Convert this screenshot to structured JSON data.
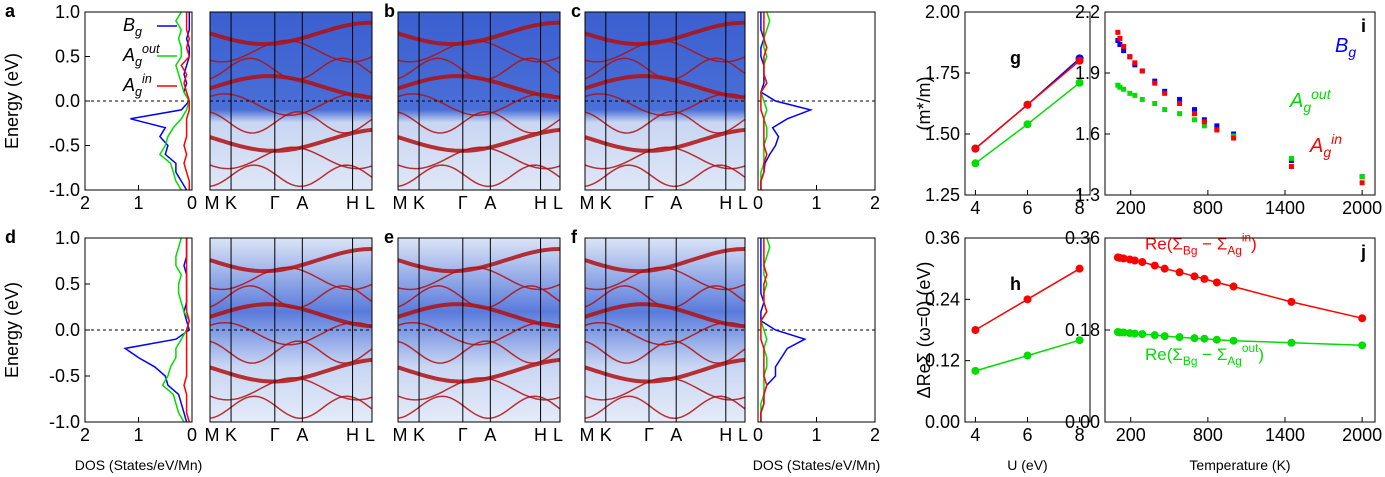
{
  "chart_data": [
    {
      "type": "dos",
      "label": "a",
      "ylabel": "Energy (eV)",
      "xlim": [
        2,
        0
      ],
      "xticks": [
        2,
        1,
        0
      ],
      "ylim": [
        -1,
        1
      ],
      "yticks": [
        {
          "value": -1,
          "label": "-1.0"
        },
        -0.5,
        {
          "value": 0,
          "label": "0.0"
        },
        0.5,
        {
          "value": 1,
          "label": "1.0"
        }
      ],
      "energy": [
        -1.0,
        -0.9,
        -0.8,
        -0.7,
        -0.6,
        -0.5,
        -0.4,
        -0.3,
        -0.2,
        -0.1,
        0.0,
        0.1,
        0.2,
        0.3,
        0.4,
        0.5,
        0.6,
        0.7,
        0.8,
        0.9,
        1.0
      ],
      "legend": true,
      "series": [
        {
          "name": [
            {
              "text": "B"
            },
            {
              "text": "g",
              "shift": "sub"
            }
          ],
          "color": "#0000ff",
          "values": [
            0.1,
            0.2,
            0.3,
            0.3,
            0.5,
            0.45,
            0.6,
            0.5,
            1.15,
            0.2,
            0.05,
            0.15,
            0.1,
            0.15,
            0.1,
            0.05,
            0.05,
            0.1,
            0.05,
            0.05,
            0.05
          ]
        },
        {
          "name": [
            {
              "text": "A"
            },
            {
              "text": "g",
              "shift": "sub"
            },
            {
              "text": "out",
              "shift": "sup"
            }
          ],
          "color": "#00dd00",
          "values": [
            0.2,
            0.3,
            0.35,
            0.4,
            0.6,
            0.5,
            0.45,
            0.35,
            0.2,
            0.1,
            0.05,
            0.15,
            0.2,
            0.25,
            0.3,
            0.2,
            0.2,
            0.25,
            0.2,
            0.3,
            0.2
          ]
        },
        {
          "name": [
            {
              "text": "A"
            },
            {
              "text": "g",
              "shift": "sub"
            },
            {
              "text": "in",
              "shift": "sup"
            }
          ],
          "color": "#ff0000",
          "values": [
            0.05,
            0.05,
            0.1,
            0.15,
            0.1,
            0.15,
            0.1,
            0.1,
            0.1,
            0.05,
            0.05,
            0.1,
            0.15,
            0.1,
            0.2,
            0.05,
            0.1,
            0.05,
            0.1,
            0.1,
            0.1
          ]
        }
      ]
    },
    {
      "type": "spectral",
      "kpoints": [
        "M",
        "K",
        "Γ",
        "A",
        "H",
        "L"
      ]
    },
    {
      "type": "spectral",
      "label": "b",
      "kpoints": [
        "M",
        "K",
        "Γ",
        "A",
        "H",
        "L"
      ]
    },
    {
      "type": "spectral",
      "label": "c",
      "kpoints": [
        "M",
        "K",
        "Γ",
        "A",
        "H",
        "L"
      ]
    },
    {
      "type": "dos",
      "xlim": [
        0,
        2
      ],
      "xticks": [
        0,
        1,
        2
      ],
      "ylim": [
        -1,
        1
      ],
      "energy": [
        -1.0,
        -0.9,
        -0.8,
        -0.7,
        -0.6,
        -0.5,
        -0.4,
        -0.3,
        -0.2,
        -0.1,
        0.0,
        0.1,
        0.2,
        0.3,
        0.4,
        0.5,
        0.6,
        0.7,
        0.8,
        0.9,
        1.0
      ],
      "series": [
        {
          "color": "#0000ff",
          "values": [
            0.05,
            0.05,
            0.1,
            0.12,
            0.2,
            0.3,
            0.35,
            0.25,
            0.5,
            0.9,
            0.3,
            0.05,
            0.1,
            0.1,
            0.1,
            0.05,
            0.05,
            0.1,
            0.05,
            0.05,
            0.05
          ]
        },
        {
          "color": "#00dd00",
          "values": [
            0.05,
            0.05,
            0.05,
            0.1,
            0.1,
            0.1,
            0.15,
            0.15,
            0.1,
            0.15,
            0.1,
            0.05,
            0.15,
            0.1,
            0.1,
            0.15,
            0.1,
            0.1,
            0.15,
            0.2,
            0.15
          ]
        },
        {
          "color": "#ff0000",
          "values": [
            0.05,
            0.05,
            0.1,
            0.1,
            0.15,
            0.1,
            0.1,
            0.1,
            0.1,
            0.05,
            0.05,
            0.05,
            0.15,
            0.1,
            0.1,
            0.1,
            0.15,
            0.1,
            0.1,
            0.1,
            0.1
          ]
        }
      ]
    },
    {
      "type": "line",
      "label": "g",
      "ylabel": "(m*/m)",
      "x": [
        4,
        6,
        8
      ],
      "xlim": [
        3.6,
        8.4
      ],
      "xticks": [
        4,
        6,
        8
      ],
      "ylim": [
        1.25,
        2.0
      ],
      "yticks": [
        1.25,
        {
          "value": 1.5,
          "label": "1.50"
        },
        1.75,
        {
          "value": 2.0,
          "label": "2.00"
        }
      ],
      "series": [
        {
          "color": "#0000ff",
          "values": [
            1.44,
            1.62,
            1.81
          ]
        },
        {
          "color": "#ff0000",
          "values": [
            1.44,
            1.62,
            1.8
          ]
        },
        {
          "color": "#00dd00",
          "values": [
            1.38,
            1.54,
            1.71
          ]
        }
      ]
    },
    {
      "type": "scatter",
      "label": "i",
      "x": [
        100,
        116,
        145,
        193,
        232,
        290,
        387,
        464,
        580,
        696,
        773,
        870,
        1000,
        1450,
        2000
      ],
      "xlim": [
        0,
        2100
      ],
      "xticks": [
        200,
        800,
        1400,
        2000
      ],
      "ylim": [
        1.3,
        2.2
      ],
      "yticks": [
        1.3,
        1.6,
        1.9,
        2.2
      ],
      "series": [
        {
          "name": [
            {
              "text": "B"
            },
            {
              "text": "g",
              "shift": "sub"
            }
          ],
          "color": "#0000ff",
          "values": [
            2.06,
            2.04,
            2.01,
            1.98,
            1.94,
            1.91,
            1.86,
            1.81,
            1.77,
            1.72,
            1.67,
            1.64,
            1.6,
            1.47,
            1.39
          ]
        },
        {
          "name": [
            {
              "text": "A"
            },
            {
              "text": "g",
              "shift": "sub"
            },
            {
              "text": "out",
              "shift": "sup"
            }
          ],
          "color": "#00dd00",
          "values": [
            1.84,
            1.83,
            1.82,
            1.8,
            1.79,
            1.77,
            1.75,
            1.72,
            1.7,
            1.67,
            1.64,
            1.62,
            1.59,
            1.48,
            1.39
          ]
        },
        {
          "name": [
            {
              "text": "A"
            },
            {
              "text": "g",
              "shift": "sub"
            },
            {
              "text": "in",
              "shift": "sup"
            }
          ],
          "color": "#ff0000",
          "values": [
            2.1,
            2.07,
            2.03,
            1.98,
            1.95,
            1.91,
            1.85,
            1.8,
            1.75,
            1.7,
            1.66,
            1.62,
            1.58,
            1.44,
            1.36
          ]
        }
      ]
    },
    {
      "type": "dos",
      "label": "d",
      "ylabel": "Energy (eV)",
      "xlabel": "DOS (States/eV/Mn)",
      "xlim": [
        2,
        0
      ],
      "xticks": [
        2,
        1,
        0
      ],
      "ylim": [
        -1,
        1
      ],
      "yticks": [
        {
          "value": -1,
          "label": "-1.0"
        },
        -0.5,
        {
          "value": 0,
          "label": "0.0"
        },
        0.5,
        {
          "value": 1,
          "label": "1.0"
        }
      ],
      "energy": [
        -1.0,
        -0.9,
        -0.8,
        -0.7,
        -0.6,
        -0.5,
        -0.4,
        -0.3,
        -0.2,
        -0.1,
        0.0,
        0.1,
        0.2,
        0.3,
        0.4,
        0.5,
        0.6,
        0.7,
        0.8,
        0.9,
        1.0
      ],
      "series": [
        {
          "color": "#0000ff",
          "values": [
            0.1,
            0.15,
            0.2,
            0.25,
            0.45,
            0.5,
            0.7,
            1.0,
            1.25,
            0.3,
            0.05,
            0.1,
            0.15,
            0.1,
            0.1,
            0.1,
            0.1,
            0.15,
            0.1,
            0.1,
            0.1
          ]
        },
        {
          "color": "#00dd00",
          "values": [
            0.15,
            0.25,
            0.3,
            0.35,
            0.55,
            0.45,
            0.4,
            0.3,
            0.3,
            0.2,
            0.1,
            0.05,
            0.15,
            0.2,
            0.25,
            0.25,
            0.2,
            0.3,
            0.3,
            0.25,
            0.2
          ]
        },
        {
          "color": "#ff0000",
          "values": [
            0.05,
            0.1,
            0.1,
            0.1,
            0.15,
            0.1,
            0.1,
            0.1,
            0.1,
            0.1,
            0.1,
            0.05,
            0.1,
            0.1,
            0.1,
            0.1,
            0.1,
            0.1,
            0.1,
            0.1,
            0.1
          ]
        }
      ]
    },
    {
      "type": "spectral",
      "kpoints": [
        "M",
        "K",
        "Γ",
        "A",
        "H",
        "L"
      ]
    },
    {
      "type": "spectral",
      "label": "e",
      "kpoints": [
        "M",
        "K",
        "Γ",
        "A",
        "H",
        "L"
      ]
    },
    {
      "type": "spectral",
      "label": "f",
      "kpoints": [
        "M",
        "K",
        "Γ",
        "A",
        "H",
        "L"
      ]
    },
    {
      "type": "dos",
      "xlabel": "DOS (States/eV/Mn)",
      "xlim": [
        0,
        2
      ],
      "xticks": [
        0,
        1,
        2
      ],
      "ylim": [
        -1,
        1
      ],
      "energy": [
        -1.0,
        -0.9,
        -0.8,
        -0.7,
        -0.6,
        -0.5,
        -0.4,
        -0.3,
        -0.2,
        -0.1,
        0.0,
        0.1,
        0.2,
        0.3,
        0.4,
        0.5,
        0.6,
        0.7,
        0.8,
        0.9,
        1.0
      ],
      "series": [
        {
          "color": "#0000ff",
          "values": [
            0.05,
            0.05,
            0.1,
            0.1,
            0.15,
            0.3,
            0.3,
            0.4,
            0.5,
            0.8,
            0.3,
            0.05,
            0.05,
            0.1,
            0.05,
            0.05,
            0.05,
            0.05,
            0.05,
            0.05,
            0.05
          ]
        },
        {
          "color": "#00dd00",
          "values": [
            0.05,
            0.05,
            0.05,
            0.1,
            0.1,
            0.1,
            0.15,
            0.15,
            0.1,
            0.15,
            0.1,
            0.05,
            0.15,
            0.1,
            0.1,
            0.15,
            0.1,
            0.1,
            0.15,
            0.2,
            0.15
          ]
        },
        {
          "color": "#ff0000",
          "values": [
            0.05,
            0.05,
            0.1,
            0.1,
            0.15,
            0.1,
            0.1,
            0.1,
            0.1,
            0.05,
            0.05,
            0.05,
            0.15,
            0.1,
            0.1,
            0.1,
            0.15,
            0.1,
            0.1,
            0.1,
            0.1
          ]
        }
      ]
    },
    {
      "type": "line",
      "label": "h",
      "ylabel": "ΔReΣ (ω=0) (eV)",
      "xlabel": "U (eV)",
      "x": [
        4,
        6,
        8
      ],
      "xlim": [
        3.6,
        8.4
      ],
      "xticks": [
        4,
        6,
        8
      ],
      "ylim": [
        0,
        0.36
      ],
      "yticks": [
        {
          "value": 0,
          "label": "0.00"
        },
        0.12,
        0.24,
        0.36
      ],
      "series": [
        {
          "color": "#ff0000",
          "values": [
            0.18,
            0.24,
            0.3
          ]
        },
        {
          "color": "#00dd00",
          "values": [
            0.1,
            0.13,
            0.16
          ]
        }
      ]
    },
    {
      "type": "line",
      "label": "j",
      "xlabel": "Temperature (K)",
      "x": [
        100,
        116,
        145,
        193,
        232,
        290,
        387,
        464,
        580,
        696,
        773,
        870,
        1000,
        1450,
        2000
      ],
      "xlim": [
        0,
        2100
      ],
      "xticks": [
        200,
        800,
        1400,
        2000
      ],
      "ylim": [
        0,
        0.36
      ],
      "yticks": [
        {
          "value": 0,
          "label": "0.00"
        },
        0.18,
        0.36
      ],
      "series": [
        {
          "name": [
            {
              "text": "Re(Σ"
            },
            {
              "text": "Bg",
              "shift": "sub"
            },
            {
              "text": " − Σ"
            },
            {
              "text": "Ag",
              "shift": "sub"
            },
            {
              "text": "in",
              "shift": "sup"
            },
            {
              "text": ")"
            }
          ],
          "color": "#ff0000",
          "values": [
            0.322,
            0.321,
            0.32,
            0.318,
            0.316,
            0.313,
            0.306,
            0.3,
            0.293,
            0.285,
            0.28,
            0.273,
            0.265,
            0.235,
            0.203
          ]
        },
        {
          "name": [
            {
              "text": "Re(Σ"
            },
            {
              "text": "Bg",
              "shift": "sub"
            },
            {
              "text": " − Σ"
            },
            {
              "text": "Ag",
              "shift": "sub"
            },
            {
              "text": "out",
              "shift": "sup"
            },
            {
              "text": ")"
            }
          ],
          "color": "#00dd00",
          "values": [
            0.176,
            0.175,
            0.175,
            0.174,
            0.173,
            0.172,
            0.17,
            0.168,
            0.166,
            0.164,
            0.163,
            0.161,
            0.159,
            0.155,
            0.15
          ]
        }
      ]
    }
  ]
}
